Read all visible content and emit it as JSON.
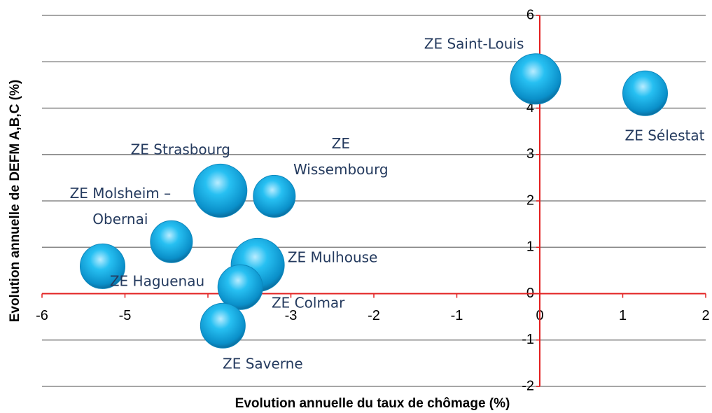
{
  "chart_data": {
    "type": "bubble",
    "xlabel": "Evolution annuelle du taux de chômage (%)",
    "ylabel": "Evolution annuelle de DEFM A,B,C (%)",
    "xlim": [
      -6,
      2
    ],
    "xticks": [
      -6,
      -5,
      -4,
      -3,
      -2,
      -1,
      0,
      1,
      2
    ],
    "ylim": [
      -2,
      6
    ],
    "yticks": [
      -2,
      -1,
      0,
      1,
      2,
      3,
      4,
      5,
      6
    ],
    "grid": true,
    "axis_color": "#e32020",
    "grid_color": "#888888",
    "color": "#14b0e6",
    "labels": [
      "ZE Saint-Louis",
      "ZE Sélestat",
      "ZE Strasbourg",
      "ZE Wissembourg",
      "ZE Molsheim – Obernai",
      "ZE Haguenau",
      "ZE Mulhouse",
      "ZE Colmar",
      "ZE Saverne"
    ],
    "x": [
      -0.05,
      1.27,
      -3.85,
      -3.2,
      -4.44,
      -5.27,
      -3.4,
      -3.61,
      -3.82
    ],
    "y": [
      4.63,
      4.32,
      2.22,
      2.1,
      1.12,
      0.59,
      0.62,
      0.14,
      -0.69
    ],
    "sizes": [
      36,
      32,
      38,
      30,
      30,
      32,
      38,
      32,
      32
    ]
  }
}
